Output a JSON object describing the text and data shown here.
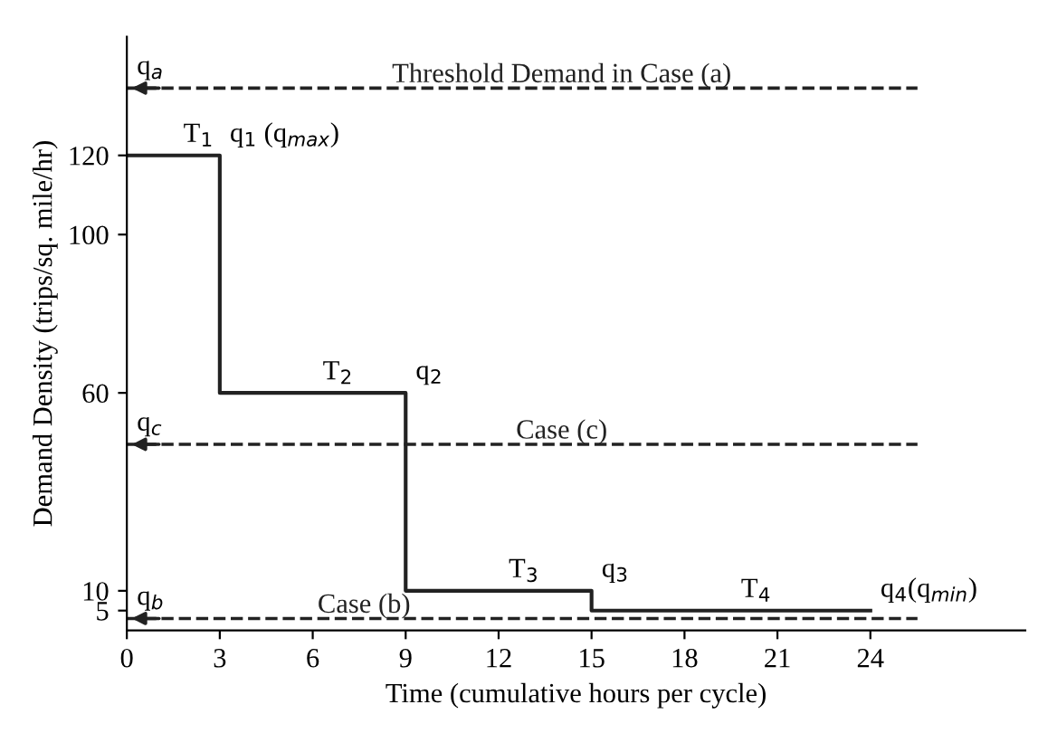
{
  "chart_data": {
    "type": "step",
    "xlabel": "Time (cumulative hours per cycle)",
    "ylabel": "Demand Density (trips/sq. mile/hr)",
    "x": [
      0,
      3,
      9,
      15,
      24
    ],
    "series": [
      {
        "color": "#222222",
        "values": [
          120,
          60,
          10,
          5,
          5
        ]
      }
    ],
    "xlim": [
      0,
      29
    ],
    "ylim": [
      0,
      150
    ],
    "xticks": [
      0,
      3,
      6,
      9,
      12,
      15,
      18,
      21,
      24
    ],
    "yticks": [
      5,
      10,
      60,
      100,
      120
    ],
    "ref_lines": [
      {
        "axis": "y",
        "value": 137,
        "label": "Threshold Demand in Case (a)",
        "color": "#222222",
        "line_style": "dashed"
      },
      {
        "axis": "y",
        "value": 47,
        "label": "Case (c)",
        "color": "#222222",
        "line_style": "dashed"
      },
      {
        "axis": "y",
        "value": 3,
        "label": "Case (b)",
        "color": "#222222",
        "line_style": "dashed"
      }
    ],
    "annotations": [
      {
        "text": "q$_{a}$",
        "x": 0,
        "y": 137
      },
      {
        "text": "q$_{c}$",
        "x": 0,
        "y": 47
      },
      {
        "text": "q$_{b}$",
        "x": 0,
        "y": 3
      },
      {
        "text": "T$_{1}$",
        "x": 1.5,
        "y": 120
      },
      {
        "text": "q$_{1}$ (q$_{max}$)",
        "x": 3,
        "y": 120
      },
      {
        "text": "T$_{2}$",
        "x": 6,
        "y": 60
      },
      {
        "text": "q$_{2}$",
        "x": 9,
        "y": 60
      },
      {
        "text": "T$_{3}$",
        "x": 12,
        "y": 10
      },
      {
        "text": "q$_{3}$",
        "x": 15,
        "y": 10
      },
      {
        "text": "T$_{4}$",
        "x": 19.5,
        "y": 5
      },
      {
        "text": "q$_{4}$(q$_{min}$)",
        "x": 24,
        "y": 5
      }
    ],
    "grid": false,
    "legend": false,
    "line_style": "solid",
    "marker": "none"
  }
}
